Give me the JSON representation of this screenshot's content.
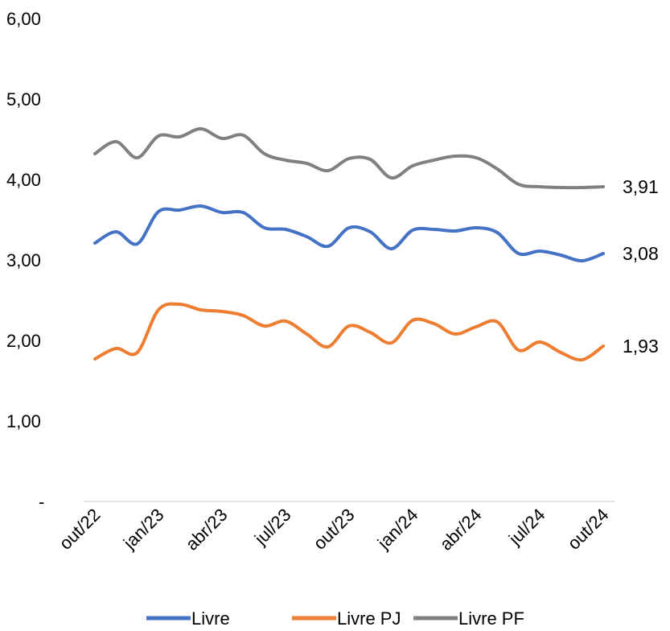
{
  "chart_data": {
    "type": "line",
    "title": "",
    "xlabel": "",
    "ylabel": "",
    "ylim": [
      0,
      6
    ],
    "grid": false,
    "legend_position": "bottom",
    "y_ticks": [
      {
        "value": 0,
        "label": "-"
      },
      {
        "value": 1,
        "label": "1,00"
      },
      {
        "value": 2,
        "label": "2,00"
      },
      {
        "value": 3,
        "label": "3,00"
      },
      {
        "value": 4,
        "label": "4,00"
      },
      {
        "value": 5,
        "label": "5,00"
      },
      {
        "value": 6,
        "label": "6,00"
      }
    ],
    "x": [
      "out/22",
      "nov/22",
      "dez/22",
      "jan/23",
      "fev/23",
      "mar/23",
      "abr/23",
      "mai/23",
      "jun/23",
      "jul/23",
      "ago/23",
      "set/23",
      "out/23",
      "nov/23",
      "dez/23",
      "jan/24",
      "fev/24",
      "mar/24",
      "abr/24",
      "mai/24",
      "jun/24",
      "jul/24",
      "ago/24",
      "set/24",
      "out/24"
    ],
    "x_tick_labels": [
      {
        "index": 0,
        "label": "out/22"
      },
      {
        "index": 3,
        "label": "jan/23"
      },
      {
        "index": 6,
        "label": "abr/23"
      },
      {
        "index": 9,
        "label": "jul/23"
      },
      {
        "index": 12,
        "label": "out/23"
      },
      {
        "index": 15,
        "label": "jan/24"
      },
      {
        "index": 18,
        "label": "abr/24"
      },
      {
        "index": 21,
        "label": "jul/24"
      },
      {
        "index": 24,
        "label": "out/24"
      }
    ],
    "series": [
      {
        "name": "Livre",
        "color": "#4472C4",
        "values": [
          3.21,
          3.35,
          3.2,
          3.6,
          3.62,
          3.67,
          3.59,
          3.59,
          3.4,
          3.38,
          3.29,
          3.17,
          3.4,
          3.35,
          3.14,
          3.37,
          3.38,
          3.36,
          3.4,
          3.34,
          3.08,
          3.11,
          3.06,
          2.99,
          3.08
        ],
        "end_label": "3,08"
      },
      {
        "name": "Livre PJ",
        "color": "#ED7D31",
        "values": [
          1.77,
          1.9,
          1.85,
          2.38,
          2.45,
          2.38,
          2.36,
          2.31,
          2.18,
          2.24,
          2.08,
          1.92,
          2.18,
          2.1,
          1.97,
          2.25,
          2.21,
          2.08,
          2.17,
          2.23,
          1.88,
          1.98,
          1.85,
          1.76,
          1.93
        ],
        "end_label": "1,93"
      },
      {
        "name": "Livre PF",
        "color": "#808080",
        "values": [
          4.32,
          4.47,
          4.27,
          4.54,
          4.53,
          4.63,
          4.51,
          4.55,
          4.32,
          4.24,
          4.2,
          4.11,
          4.26,
          4.25,
          4.02,
          4.17,
          4.24,
          4.29,
          4.27,
          4.13,
          3.94,
          3.91,
          3.9,
          3.9,
          3.91
        ],
        "end_label": "3,91"
      }
    ]
  },
  "colors": {
    "axis": "#d9d9d9",
    "text": "#000000"
  }
}
